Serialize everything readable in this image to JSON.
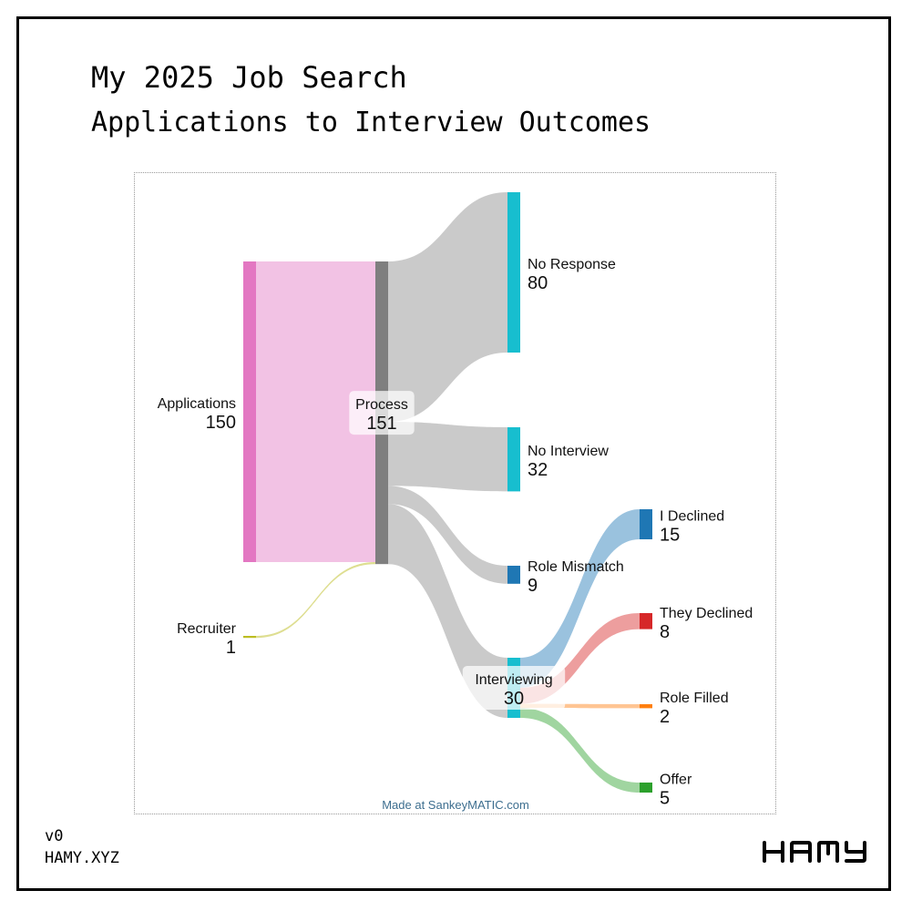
{
  "header": {
    "title": "My 2025 Job Search",
    "subtitle": "Applications to Interview Outcomes"
  },
  "footer": {
    "version": "v0",
    "site": "HAMY.XYZ",
    "logo_text": "HAMY"
  },
  "credit": "Made at SankeyMATIC.com",
  "chart_data": {
    "type": "sankey",
    "nodes": [
      {
        "name": "Applications",
        "value": 150,
        "color": "#e377c2"
      },
      {
        "name": "Recruiter",
        "value": 1,
        "color": "#bcbd22"
      },
      {
        "name": "Process",
        "value": 151,
        "color": "#7f7f7f"
      },
      {
        "name": "No Response",
        "value": 80,
        "color": "#17becf"
      },
      {
        "name": "No Interview",
        "value": 32,
        "color": "#17becf"
      },
      {
        "name": "Role Mismatch",
        "value": 9,
        "color": "#1f77b4"
      },
      {
        "name": "Interviewing",
        "value": 30,
        "color": "#17becf"
      },
      {
        "name": "I Declined",
        "value": 15,
        "color": "#1f77b4"
      },
      {
        "name": "They Declined",
        "value": 8,
        "color": "#d62728"
      },
      {
        "name": "Role Filled",
        "value": 2,
        "color": "#ff7f0e"
      },
      {
        "name": "Offer",
        "value": 5,
        "color": "#2ca02c"
      }
    ],
    "flows": [
      {
        "from": "Applications",
        "to": "Process",
        "value": 150
      },
      {
        "from": "Recruiter",
        "to": "Process",
        "value": 1
      },
      {
        "from": "Process",
        "to": "No Response",
        "value": 80
      },
      {
        "from": "Process",
        "to": "No Interview",
        "value": 32
      },
      {
        "from": "Process",
        "to": "Role Mismatch",
        "value": 9
      },
      {
        "from": "Process",
        "to": "Interviewing",
        "value": 30
      },
      {
        "from": "Interviewing",
        "to": "I Declined",
        "value": 15
      },
      {
        "from": "Interviewing",
        "to": "They Declined",
        "value": 8
      },
      {
        "from": "Interviewing",
        "to": "Role Filled",
        "value": 2
      },
      {
        "from": "Interviewing",
        "to": "Offer",
        "value": 5
      }
    ]
  }
}
